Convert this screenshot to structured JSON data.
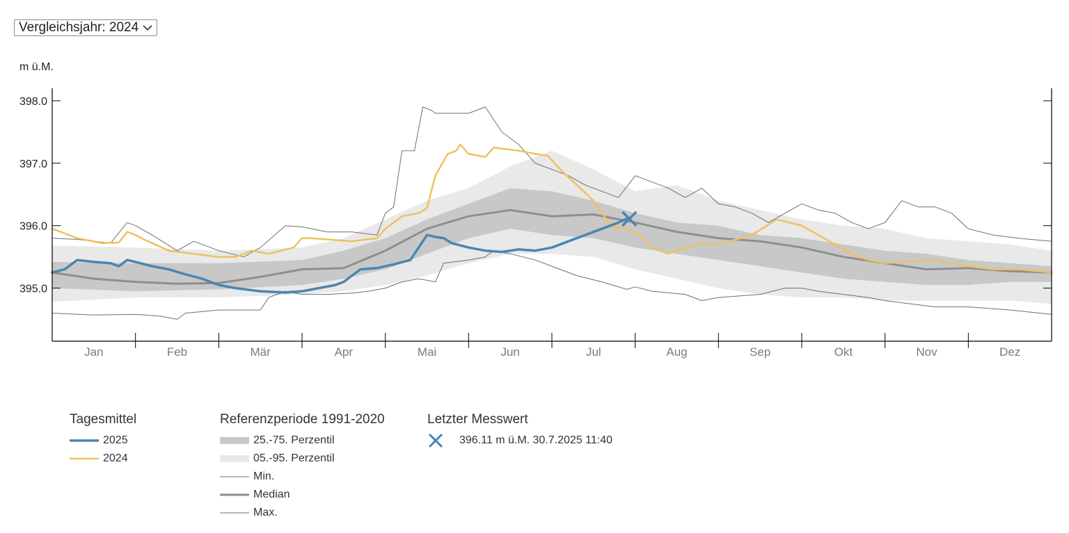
{
  "selector": {
    "label": "Vergleichsjahr: 2024"
  },
  "colors": {
    "y2025": "#4a86b0",
    "y2024": "#f0c060",
    "band_25_75": "#c8c8c8",
    "band_05_95": "#e9e9e9",
    "median": "#8e8e8e",
    "minmax": "#6e6e6e",
    "axis": "#000000",
    "month_label": "#7a7a7a"
  },
  "chart_data": {
    "type": "line",
    "ylabel": "m ü.M.",
    "ylim": [
      394.15,
      398.2
    ],
    "yticks": [
      395.0,
      396.0,
      397.0,
      398.0
    ],
    "ytick_labels": [
      "395.0",
      "396.0",
      "397.0",
      "398.0"
    ],
    "xlim": [
      0,
      12
    ],
    "months": [
      "Jan",
      "Feb",
      "Mär",
      "Apr",
      "Mai",
      "Jun",
      "Jul",
      "Aug",
      "Sep",
      "Okt",
      "Nov",
      "Dez"
    ],
    "x_unit": "months since 1 Jan",
    "series": [
      {
        "name": "Max.",
        "role": "max",
        "x": [
          0,
          0.3,
          0.7,
          0.9,
          1.0,
          1.2,
          1.5,
          1.7,
          2.0,
          2.3,
          2.5,
          2.8,
          3.0,
          3.3,
          3.6,
          3.9,
          4.0,
          4.1,
          4.2,
          4.35,
          4.45,
          4.55,
          4.6,
          4.8,
          5.0,
          5.2,
          5.4,
          5.6,
          5.8,
          6.0,
          6.2,
          6.4,
          6.6,
          6.8,
          7.0,
          7.2,
          7.4,
          7.6,
          7.8,
          8.0,
          8.2,
          8.4,
          8.6,
          8.8,
          9.0,
          9.2,
          9.4,
          9.6,
          9.8,
          10.0,
          10.2,
          10.4,
          10.6,
          10.8,
          11.0,
          11.3,
          11.6,
          12.0
        ],
        "y": [
          395.8,
          395.78,
          395.72,
          396.05,
          396.0,
          395.85,
          395.6,
          395.75,
          395.6,
          395.5,
          395.65,
          396.0,
          395.98,
          395.9,
          395.9,
          395.85,
          396.2,
          396.3,
          397.2,
          397.2,
          397.9,
          397.85,
          397.8,
          397.8,
          397.8,
          397.9,
          397.5,
          397.3,
          397.0,
          396.9,
          396.8,
          396.65,
          396.55,
          396.45,
          396.8,
          396.7,
          396.6,
          396.45,
          396.6,
          396.35,
          396.3,
          396.2,
          396.05,
          396.2,
          396.35,
          396.25,
          396.2,
          396.05,
          395.95,
          396.05,
          396.4,
          396.3,
          396.3,
          396.2,
          395.95,
          395.85,
          395.8,
          395.75
        ]
      },
      {
        "name": "05.-95. Perzentil",
        "x": [
          0,
          1,
          2,
          3,
          3.5,
          4,
          4.5,
          5,
          5.5,
          6,
          6.5,
          7,
          7.5,
          8,
          8.5,
          9,
          9.5,
          10,
          10.5,
          11,
          11.5,
          12
        ],
        "upper": [
          395.68,
          395.65,
          395.6,
          395.65,
          395.8,
          396.1,
          396.4,
          396.6,
          396.95,
          397.2,
          396.9,
          396.55,
          396.65,
          396.4,
          396.25,
          396.1,
          396.0,
          395.95,
          395.8,
          395.75,
          395.7,
          395.6
        ],
        "lower": [
          394.78,
          394.85,
          394.85,
          394.9,
          394.95,
          395.05,
          395.2,
          395.4,
          395.55,
          395.55,
          395.5,
          395.3,
          395.15,
          395.0,
          394.9,
          394.85,
          394.85,
          394.8,
          394.8,
          394.8,
          394.8,
          394.75
        ]
      },
      {
        "name": "25.-75. Perzentil",
        "x": [
          0,
          1,
          2,
          3,
          3.5,
          4,
          4.5,
          5,
          5.5,
          6,
          6.5,
          7,
          7.5,
          8,
          8.5,
          9,
          9.5,
          10,
          10.5,
          11,
          11.5,
          12
        ],
        "upper": [
          395.42,
          395.4,
          395.4,
          395.45,
          395.6,
          395.8,
          396.1,
          396.35,
          396.6,
          396.55,
          396.4,
          396.2,
          396.05,
          396.0,
          395.85,
          395.8,
          395.7,
          395.6,
          395.55,
          395.45,
          395.4,
          395.35
        ],
        "lower": [
          395.0,
          394.95,
          394.98,
          395.05,
          395.15,
          395.3,
          395.55,
          395.8,
          395.95,
          395.85,
          395.8,
          395.65,
          395.55,
          395.45,
          395.35,
          395.25,
          395.15,
          395.1,
          395.05,
          395.05,
          395.1,
          395.1
        ]
      },
      {
        "name": "Median",
        "role": "median",
        "x": [
          0,
          0.5,
          1,
          1.5,
          2,
          2.5,
          3,
          3.5,
          4,
          4.5,
          5,
          5.5,
          6,
          6.5,
          7,
          7.5,
          8,
          8.5,
          9,
          9.5,
          10,
          10.5,
          11,
          11.5,
          12
        ],
        "y": [
          395.25,
          395.15,
          395.1,
          395.07,
          395.08,
          395.18,
          395.3,
          395.32,
          395.6,
          395.95,
          396.15,
          396.25,
          396.15,
          396.18,
          396.05,
          395.9,
          395.8,
          395.75,
          395.65,
          395.5,
          395.4,
          395.3,
          395.32,
          395.27,
          395.25
        ]
      },
      {
        "name": "Min.",
        "role": "min",
        "x": [
          0,
          0.5,
          1,
          1.3,
          1.5,
          1.6,
          2.0,
          2.2,
          2.5,
          2.6,
          2.8,
          3.0,
          3.3,
          3.6,
          3.8,
          4.0,
          4.2,
          4.4,
          4.6,
          4.7,
          5.0,
          5.2,
          5.3,
          5.5,
          5.8,
          6.0,
          6.3,
          6.6,
          6.9,
          7.0,
          7.2,
          7.6,
          7.8,
          8.0,
          8.5,
          8.8,
          9.0,
          9.2,
          9.5,
          9.8,
          10.0,
          10.3,
          10.6,
          11.0,
          11.5,
          12.0
        ],
        "y": [
          394.6,
          394.57,
          394.58,
          394.55,
          394.5,
          394.6,
          394.65,
          394.65,
          394.65,
          394.85,
          394.95,
          394.9,
          394.9,
          394.92,
          394.95,
          395.0,
          395.1,
          395.15,
          395.1,
          395.4,
          395.45,
          395.5,
          395.6,
          395.55,
          395.45,
          395.35,
          395.2,
          395.1,
          394.98,
          395.02,
          394.95,
          394.9,
          394.8,
          394.85,
          394.9,
          395.0,
          395.0,
          394.95,
          394.9,
          394.85,
          394.8,
          394.75,
          394.7,
          394.7,
          394.65,
          394.58
        ]
      },
      {
        "name": "2024",
        "role": "y2024",
        "x": [
          0,
          0.3,
          0.6,
          0.8,
          0.9,
          1.0,
          1.1,
          1.4,
          1.7,
          2.0,
          2.2,
          2.4,
          2.6,
          2.9,
          3.0,
          3.1,
          3.3,
          3.6,
          3.9,
          4.0,
          4.2,
          4.4,
          4.5,
          4.6,
          4.75,
          4.85,
          4.9,
          5.0,
          5.2,
          5.3,
          5.6,
          5.8,
          5.95,
          6.1,
          6.3,
          6.5,
          6.7,
          6.9,
          7.0,
          7.2,
          7.4,
          7.6,
          7.8,
          8.0,
          8.4,
          8.7,
          9.0,
          9.2,
          9.4,
          9.6,
          9.8,
          10.0,
          10.3,
          10.6,
          11.0,
          11.3,
          11.6,
          12.0
        ],
        "y": [
          395.95,
          395.8,
          395.72,
          395.73,
          395.9,
          395.85,
          395.78,
          395.6,
          395.55,
          395.5,
          395.5,
          395.6,
          395.55,
          395.65,
          395.8,
          395.8,
          395.78,
          395.75,
          395.8,
          395.95,
          396.15,
          396.2,
          396.28,
          396.8,
          397.15,
          397.2,
          397.3,
          397.15,
          397.1,
          397.25,
          397.2,
          397.15,
          397.12,
          396.9,
          396.65,
          396.4,
          396.0,
          395.95,
          395.9,
          395.65,
          395.55,
          395.65,
          395.72,
          395.7,
          395.85,
          396.1,
          396.0,
          395.85,
          395.7,
          395.55,
          395.45,
          395.4,
          395.43,
          395.45,
          395.35,
          395.3,
          395.3,
          395.25
        ]
      },
      {
        "name": "2025",
        "role": "y2025",
        "x": [
          0,
          0.15,
          0.3,
          0.5,
          0.7,
          0.8,
          0.9,
          1.0,
          1.2,
          1.4,
          1.6,
          1.8,
          2.0,
          2.2,
          2.5,
          2.8,
          3.0,
          3.2,
          3.4,
          3.5,
          3.7,
          3.9,
          4.0,
          4.1,
          4.3,
          4.5,
          4.6,
          4.7,
          4.8,
          5.0,
          5.2,
          5.4,
          5.6,
          5.8,
          6.0,
          6.2,
          6.4,
          6.6,
          6.7,
          6.8,
          6.9
        ],
        "y": [
          395.25,
          395.3,
          395.45,
          395.42,
          395.4,
          395.35,
          395.45,
          395.42,
          395.35,
          395.3,
          395.22,
          395.15,
          395.05,
          395.0,
          394.95,
          394.93,
          394.95,
          395.0,
          395.05,
          395.1,
          395.3,
          395.32,
          395.35,
          395.38,
          395.45,
          395.85,
          395.82,
          395.8,
          395.72,
          395.65,
          395.6,
          395.58,
          395.62,
          395.6,
          395.65,
          395.75,
          395.85,
          395.95,
          396.0,
          396.05,
          396.11
        ]
      }
    ],
    "last_value": {
      "x": 6.93,
      "y": 396.11
    }
  },
  "legend": {
    "tagesmittel": {
      "title": "Tagesmittel",
      "items": [
        "2025",
        "2024"
      ]
    },
    "referenz": {
      "title": "Referenzperiode 1991-2020",
      "items": [
        "25.-75. Perzentil",
        "05.-95. Perzentil",
        "Min.",
        "Median",
        "Max."
      ]
    },
    "letzter": {
      "title": "Letzter Messwert",
      "text": "396.11 m ü.M. 30.7.2025 11:40"
    }
  }
}
